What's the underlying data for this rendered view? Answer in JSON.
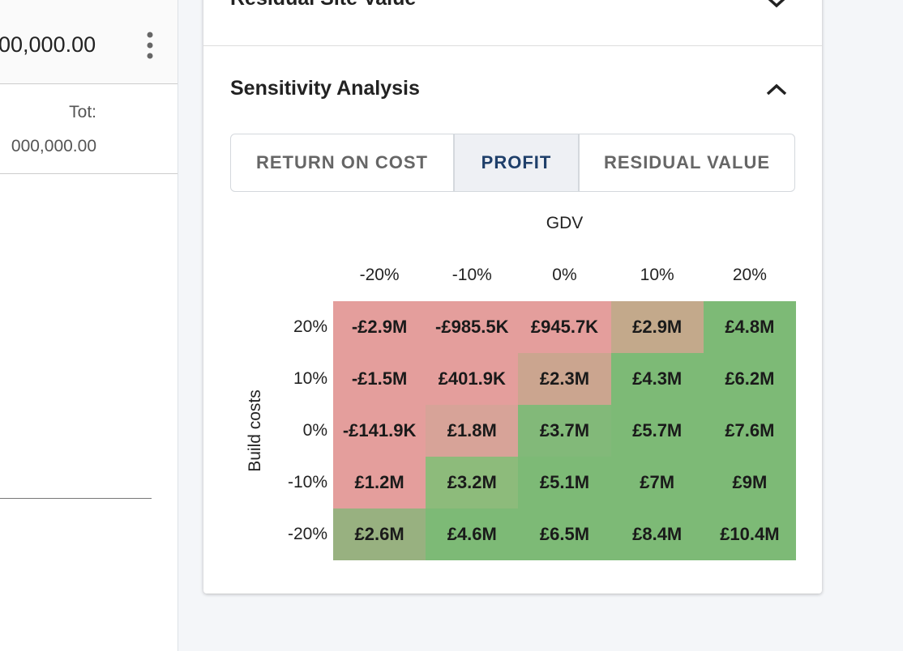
{
  "left_panel": {
    "amount": "00,000.00",
    "total_label": "Tot:",
    "total_value": "000,000.00"
  },
  "card": {
    "collapsed_section": "Residual Site Value",
    "section_title": "Sensitivity Analysis",
    "tabs": [
      "RETURN ON COST",
      "PROFIT",
      "RESIDUAL VALUE"
    ],
    "selected_tab": 1,
    "heatmap": {
      "x_label": "GDV",
      "y_label": "Build costs",
      "columns": [
        "-20%",
        "-10%",
        "0%",
        "10%",
        "20%"
      ],
      "rows": [
        {
          "label": "20%",
          "cells": [
            {
              "text": "-£2.9M",
              "color": "#e49e9c"
            },
            {
              "text": "-£985.5K",
              "color": "#e49e9c"
            },
            {
              "text": "£945.7K",
              "color": "#e49e9c"
            },
            {
              "text": "£2.9M",
              "color": "#c3a98b"
            },
            {
              "text": "£4.8M",
              "color": "#7dba76"
            }
          ]
        },
        {
          "label": "10%",
          "cells": [
            {
              "text": "-£1.5M",
              "color": "#e49e9c"
            },
            {
              "text": "£401.9K",
              "color": "#e49e9c"
            },
            {
              "text": "£2.3M",
              "color": "#cba58f"
            },
            {
              "text": "£4.3M",
              "color": "#7dba76"
            },
            {
              "text": "£6.2M",
              "color": "#7dba76"
            }
          ]
        },
        {
          "label": "0%",
          "cells": [
            {
              "text": "-£141.9K",
              "color": "#e49e9c"
            },
            {
              "text": "£1.8M",
              "color": "#d7a398"
            },
            {
              "text": "£3.7M",
              "color": "#82b979"
            },
            {
              "text": "£5.7M",
              "color": "#7dba76"
            },
            {
              "text": "£7.6M",
              "color": "#7dba76"
            }
          ]
        },
        {
          "label": "-10%",
          "cells": [
            {
              "text": "£1.2M",
              "color": "#e49e9c"
            },
            {
              "text": "£3.2M",
              "color": "#8dbb7b"
            },
            {
              "text": "£5.1M",
              "color": "#7dba76"
            },
            {
              "text": "£7M",
              "color": "#7dba76"
            },
            {
              "text": "£9M",
              "color": "#7dba76"
            }
          ]
        },
        {
          "label": "-20%",
          "cells": [
            {
              "text": "£2.6M",
              "color": "#98b180"
            },
            {
              "text": "£4.6M",
              "color": "#7dba76"
            },
            {
              "text": "£6.5M",
              "color": "#7dba76"
            },
            {
              "text": "£8.4M",
              "color": "#7dba76"
            },
            {
              "text": "£10.4M",
              "color": "#7dba76"
            }
          ]
        }
      ]
    }
  }
}
